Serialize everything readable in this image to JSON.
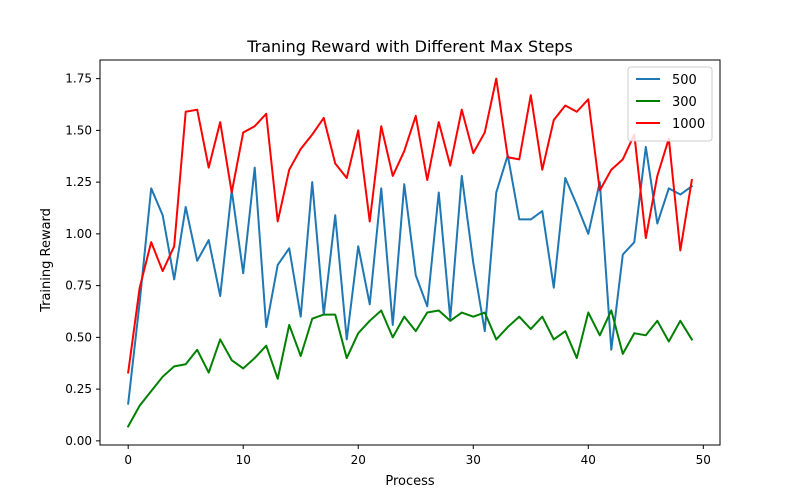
{
  "chart_data": {
    "type": "line",
    "title": "Traning Reward with Different Max Steps",
    "xlabel": "Process",
    "ylabel": "Training Reward",
    "xlim": [
      -2.45,
      51.45
    ],
    "ylim": [
      -0.02,
      1.84
    ],
    "xticks": [
      0,
      10,
      20,
      30,
      40,
      50
    ],
    "yticks": [
      0.0,
      0.25,
      0.5,
      0.75,
      1.0,
      1.25,
      1.5,
      1.75
    ],
    "xtick_labels": [
      "0",
      "10",
      "20",
      "30",
      "40",
      "50"
    ],
    "ytick_labels": [
      "0.00",
      "0.25",
      "0.50",
      "0.75",
      "1.00",
      "1.25",
      "1.50",
      "1.75"
    ],
    "grid": false,
    "legend_position": "top-right",
    "x": [
      0,
      1,
      2,
      3,
      4,
      5,
      6,
      7,
      8,
      9,
      10,
      11,
      12,
      13,
      14,
      15,
      16,
      17,
      18,
      19,
      20,
      21,
      22,
      23,
      24,
      25,
      26,
      27,
      28,
      29,
      30,
      31,
      32,
      33,
      34,
      35,
      36,
      37,
      38,
      39,
      40,
      41,
      42,
      43,
      44,
      45,
      46,
      47,
      48,
      49
    ],
    "series": [
      {
        "name": "500",
        "color": "#1f77b4",
        "values": [
          0.18,
          0.67,
          1.22,
          1.09,
          0.78,
          1.13,
          0.87,
          0.97,
          0.7,
          1.21,
          0.81,
          1.32,
          0.55,
          0.85,
          0.93,
          0.6,
          1.25,
          0.61,
          1.09,
          0.49,
          0.94,
          0.66,
          1.22,
          0.56,
          1.24,
          0.8,
          0.65,
          1.2,
          0.59,
          1.28,
          0.86,
          0.53,
          1.2,
          1.38,
          1.07,
          1.07,
          1.11,
          0.74,
          1.27,
          1.14,
          1.0,
          1.25,
          0.44,
          0.9,
          0.96,
          1.42,
          1.05,
          1.22,
          1.19,
          1.23
        ]
      },
      {
        "name": "300",
        "color": "#008000",
        "values": [
          0.07,
          0.17,
          0.24,
          0.31,
          0.36,
          0.37,
          0.44,
          0.33,
          0.49,
          0.39,
          0.35,
          0.4,
          0.46,
          0.3,
          0.56,
          0.41,
          0.59,
          0.61,
          0.61,
          0.4,
          0.52,
          0.58,
          0.63,
          0.5,
          0.6,
          0.53,
          0.62,
          0.63,
          0.58,
          0.62,
          0.6,
          0.62,
          0.49,
          0.55,
          0.6,
          0.54,
          0.6,
          0.49,
          0.53,
          0.4,
          0.62,
          0.51,
          0.63,
          0.42,
          0.52,
          0.51,
          0.58,
          0.48,
          0.58,
          0.49
        ]
      },
      {
        "name": "1000",
        "color": "#ff0000",
        "values": [
          0.33,
          0.74,
          0.96,
          0.82,
          0.94,
          1.59,
          1.6,
          1.32,
          1.54,
          1.2,
          1.49,
          1.52,
          1.58,
          1.06,
          1.31,
          1.41,
          1.48,
          1.56,
          1.34,
          1.27,
          1.5,
          1.06,
          1.52,
          1.28,
          1.4,
          1.57,
          1.26,
          1.54,
          1.33,
          1.6,
          1.39,
          1.49,
          1.75,
          1.37,
          1.36,
          1.67,
          1.31,
          1.55,
          1.62,
          1.59,
          1.65,
          1.21,
          1.31,
          1.36,
          1.48,
          0.98,
          1.28,
          1.46,
          0.92,
          1.26
        ]
      }
    ]
  }
}
